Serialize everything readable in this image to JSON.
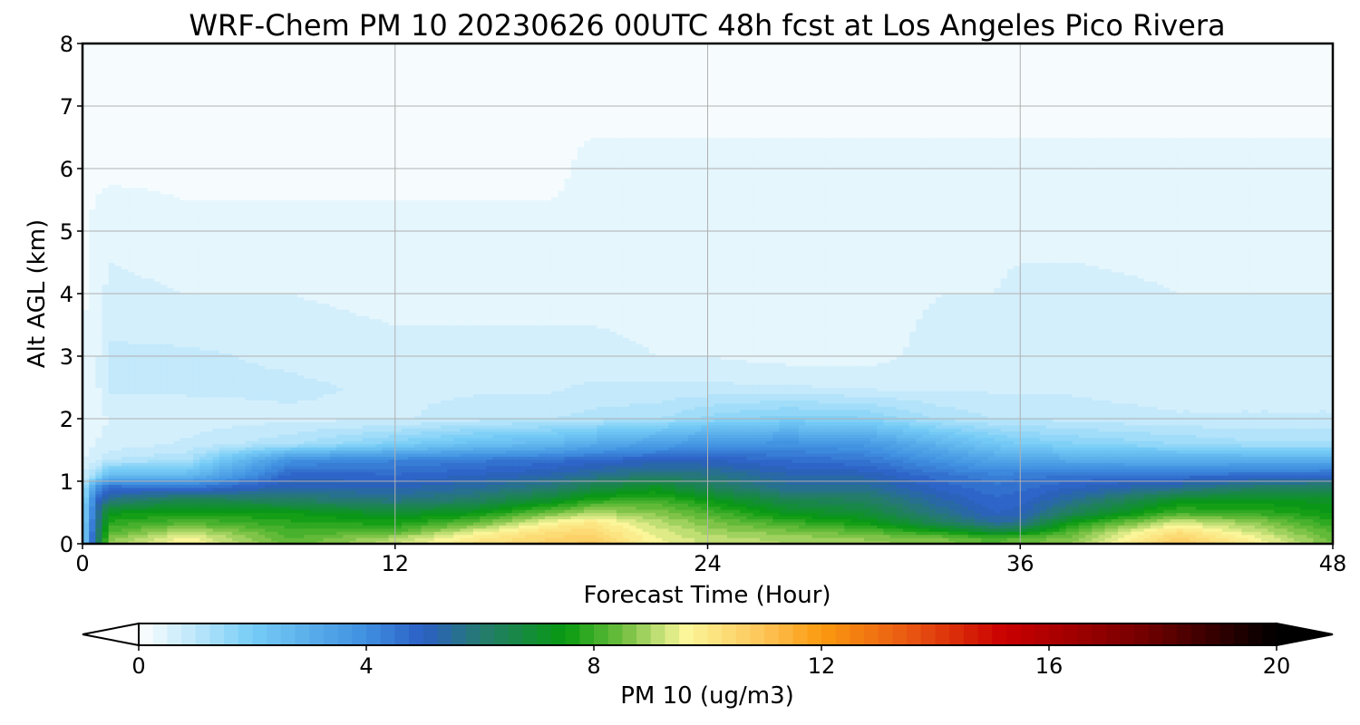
{
  "chart_data": {
    "type": "heatmap",
    "subtype": "filled-contour time-height cross section",
    "title": "WRF-Chem PM 10  20230626 00UTC 48h fcst at Los Angeles Pico Rivera",
    "xlabel": "Forecast Time (Hour)",
    "ylabel": "Alt AGL (km)",
    "xlim": [
      0,
      48
    ],
    "ylim": [
      0,
      8
    ],
    "x_ticks": [
      0,
      12,
      24,
      36,
      48
    ],
    "y_ticks": [
      0,
      1,
      2,
      3,
      4,
      5,
      6,
      7,
      8
    ],
    "grid": true,
    "colorbar": {
      "label": "PM 10  (ug/m3)",
      "orientation": "horizontal",
      "placement": "bottom",
      "min": 0,
      "max": 20,
      "ticks": [
        0,
        4,
        8,
        12,
        16,
        20
      ],
      "extend": "both",
      "levels": 80,
      "stops": [
        {
          "v": 0,
          "c": "#ffffff"
        },
        {
          "v": 2,
          "c": "#76cdf6"
        },
        {
          "v": 4,
          "c": "#3f8fe0"
        },
        {
          "v": 5,
          "c": "#2c5fc4"
        },
        {
          "v": 6,
          "c": "#257a70"
        },
        {
          "v": 7.5,
          "c": "#089a10"
        },
        {
          "v": 8.5,
          "c": "#6fbe3f"
        },
        {
          "v": 9.6,
          "c": "#fbf79a"
        },
        {
          "v": 11,
          "c": "#fdc356"
        },
        {
          "v": 12,
          "c": "#fb9a10"
        },
        {
          "v": 13.5,
          "c": "#ea5a12"
        },
        {
          "v": 15.2,
          "c": "#cb0000"
        },
        {
          "v": 17.5,
          "c": "#7a0000"
        },
        {
          "v": 20,
          "c": "#000000"
        }
      ]
    },
    "series": [
      {
        "field": "pm10",
        "x": [
          0,
          0.5,
          1,
          4,
          8,
          12,
          15,
          18,
          19.5,
          22,
          24,
          27,
          30,
          33,
          35,
          36,
          38,
          42,
          45,
          48
        ],
        "y": [
          0,
          0.1,
          0.2,
          0.35,
          0.5,
          0.7,
          0.9,
          1.1,
          1.35,
          1.6,
          2,
          2.5,
          3,
          4,
          5,
          6,
          7,
          8
        ],
        "values": [
          [
            1.8,
            5.5,
            8.8,
            9.8,
            8.3,
            9.2,
            10.0,
            10.6,
            10.9,
            9.6,
            9.2,
            9.0,
            8.9,
            8.6,
            8.2,
            8.4,
            8.8,
            10.8,
            9.8,
            8.5
          ],
          [
            1.8,
            5.5,
            8.6,
            9.6,
            8.2,
            9.0,
            9.9,
            10.5,
            10.7,
            9.5,
            9.1,
            8.9,
            8.7,
            8.5,
            8.1,
            8.3,
            8.6,
            10.6,
            9.6,
            8.4
          ],
          [
            1.7,
            5.4,
            8.2,
            9.1,
            8.1,
            8.2,
            9.4,
            10.3,
            10.4,
            9.4,
            8.9,
            8.6,
            8.3,
            7.6,
            6.8,
            7.0,
            8.3,
            10.2,
            9.2,
            8.2
          ],
          [
            1.6,
            5.2,
            7.8,
            8.2,
            7.8,
            7.6,
            8.3,
            9.6,
            10.0,
            9.1,
            8.6,
            8.0,
            7.5,
            6.3,
            5.5,
            5.6,
            7.5,
            9.3,
            8.8,
            7.8
          ],
          [
            1.5,
            5.0,
            7.4,
            7.6,
            7.5,
            7.0,
            7.4,
            8.5,
            9.0,
            8.7,
            8.2,
            7.3,
            6.9,
            5.7,
            5.0,
            5.1,
            6.4,
            8.1,
            7.9,
            7.5
          ],
          [
            1.3,
            4.8,
            5.8,
            6.6,
            6.2,
            5.8,
            6.2,
            7.1,
            7.8,
            8.1,
            7.5,
            6.5,
            6.3,
            5.3,
            4.8,
            4.9,
            5.6,
            7.2,
            7.4,
            7.1
          ],
          [
            1.0,
            3.8,
            4.8,
            4.6,
            5.3,
            5.2,
            5.5,
            6.0,
            6.6,
            7.2,
            6.4,
            5.6,
            5.6,
            4.9,
            4.6,
            4.7,
            5.0,
            5.6,
            6.2,
            6.4
          ],
          [
            0.7,
            1.4,
            2.6,
            2.6,
            4.9,
            4.8,
            5.0,
            5.3,
            5.6,
            6.0,
            5.8,
            5.3,
            5.2,
            4.6,
            4.3,
            4.4,
            4.5,
            4.6,
            4.7,
            4.8
          ],
          [
            0.5,
            0.6,
            1.0,
            1.2,
            3.9,
            4.2,
            4.4,
            4.6,
            4.8,
            5.0,
            5.0,
            4.7,
            4.5,
            3.8,
            3.3,
            3.2,
            3.1,
            3.0,
            3.0,
            3.0
          ],
          [
            0.4,
            0.5,
            0.6,
            0.8,
            1.2,
            1.9,
            2.4,
            2.7,
            3.1,
            3.5,
            3.8,
            3.9,
            3.7,
            2.8,
            2.2,
            2.0,
            1.8,
            1.5,
            1.3,
            1.3
          ],
          [
            0.3,
            0.4,
            0.5,
            0.6,
            0.7,
            0.7,
            0.9,
            1.0,
            1.1,
            1.2,
            1.6,
            1.9,
            1.8,
            1.2,
            1.0,
            1.0,
            0.9,
            0.8,
            0.8,
            0.8
          ],
          [
            0.3,
            0.4,
            0.8,
            0.8,
            0.8,
            0.7,
            0.7,
            0.7,
            0.8,
            0.8,
            0.8,
            0.8,
            0.7,
            0.7,
            0.7,
            0.7,
            0.7,
            0.6,
            0.6,
            0.6
          ],
          [
            0.3,
            0.4,
            0.8,
            0.8,
            0.7,
            0.6,
            0.6,
            0.6,
            0.6,
            0.5,
            0.5,
            0.4,
            0.4,
            0.6,
            0.6,
            0.6,
            0.6,
            0.6,
            0.6,
            0.6
          ],
          [
            0.2,
            0.3,
            0.6,
            0.5,
            0.5,
            0.4,
            0.4,
            0.4,
            0.4,
            0.4,
            0.4,
            0.4,
            0.4,
            0.5,
            0.5,
            0.6,
            0.6,
            0.5,
            0.5,
            0.5
          ],
          [
            0.2,
            0.3,
            0.4,
            0.3,
            0.3,
            0.3,
            0.3,
            0.3,
            0.3,
            0.3,
            0.3,
            0.3,
            0.3,
            0.4,
            0.4,
            0.4,
            0.4,
            0.4,
            0.4,
            0.4
          ],
          [
            0.2,
            0.2,
            0.2,
            0.2,
            0.2,
            0.2,
            0.2,
            0.2,
            0.3,
            0.3,
            0.3,
            0.3,
            0.3,
            0.3,
            0.3,
            0.3,
            0.3,
            0.3,
            0.3,
            0.3
          ],
          [
            0.2,
            0.2,
            0.1,
            0.1,
            0.1,
            0.2,
            0.2,
            0.2,
            0.2,
            0.2,
            0.2,
            0.2,
            0.2,
            0.2,
            0.2,
            0.2,
            0.2,
            0.2,
            0.2,
            0.2
          ],
          [
            0.2,
            0.2,
            0.1,
            0.1,
            0.1,
            0.1,
            0.1,
            0.1,
            0.1,
            0.1,
            0.1,
            0.1,
            0.2,
            0.2,
            0.2,
            0.2,
            0.2,
            0.1,
            0.1,
            0.1
          ]
        ]
      }
    ]
  }
}
